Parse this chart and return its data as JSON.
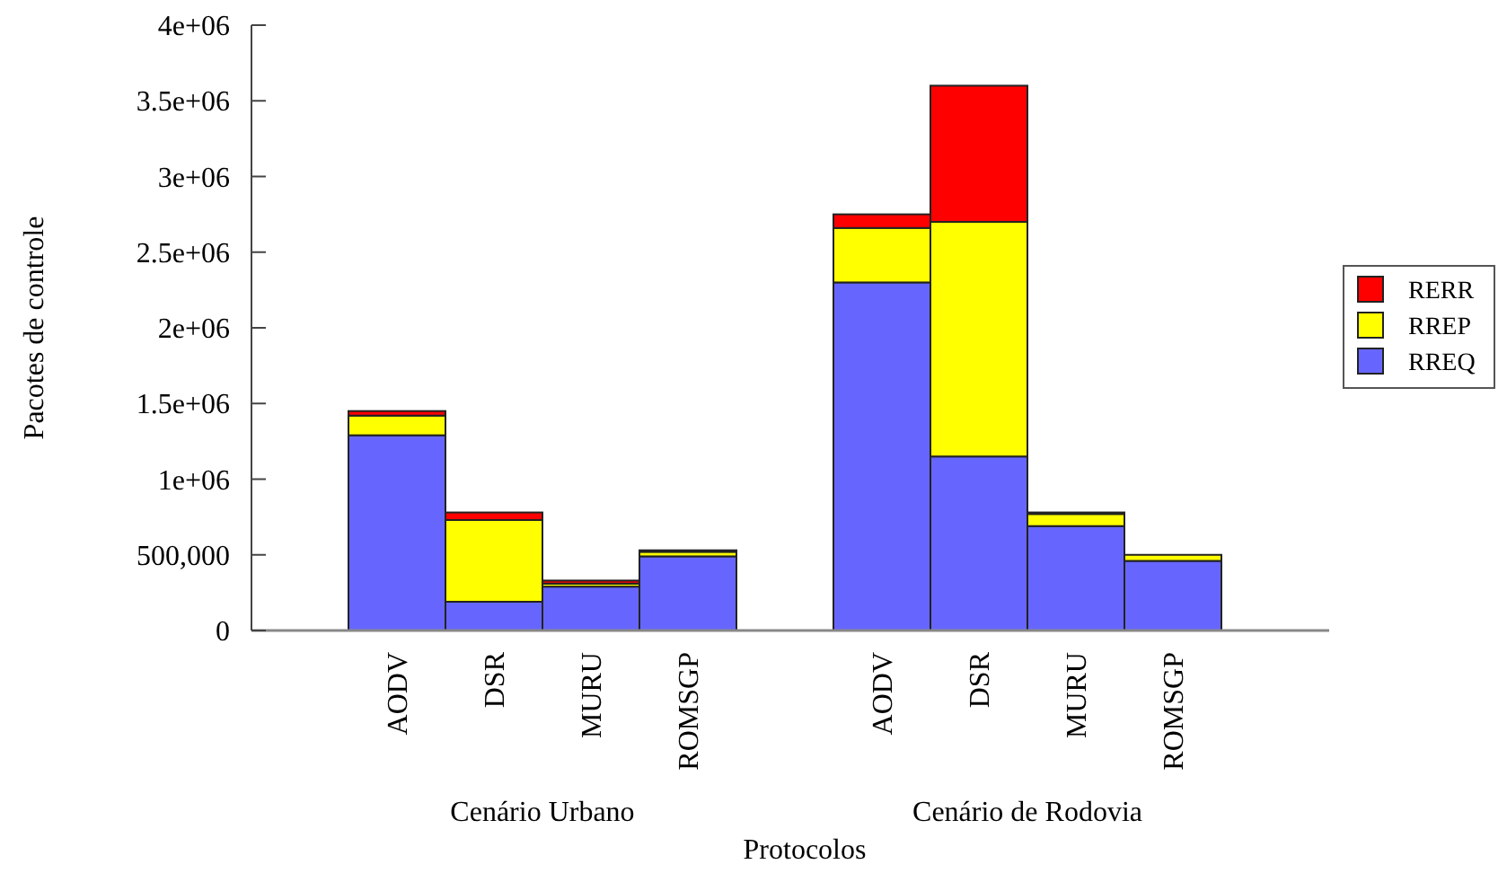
{
  "chart_data": {
    "type": "bar",
    "stacked": true,
    "xlabel": "Protocolos",
    "ylabel": "Pacotes de controle",
    "categories": [
      "AODV",
      "DSR",
      "MURU",
      "ROMSGP",
      null,
      "AODV",
      "DSR",
      "MURU",
      "ROMSGP"
    ],
    "series": [
      {
        "name": "RREQ",
        "color": "#6666ff",
        "values": [
          1290000,
          190000,
          290000,
          490000,
          null,
          2300000,
          1150000,
          690000,
          460000
        ]
      },
      {
        "name": "RREP",
        "color": "#ffff00",
        "values": [
          130000,
          540000,
          20000,
          30000,
          null,
          360000,
          1550000,
          80000,
          40000
        ]
      },
      {
        "name": "RERR",
        "color": "#ff0000",
        "values": [
          30000,
          50000,
          20000,
          10000,
          null,
          90000,
          900000,
          10000,
          null
        ]
      }
    ],
    "ylim": [
      0,
      4000000
    ],
    "yticks": [
      0,
      {
        "value": 500000,
        "label": "500,000"
      },
      {
        "value": 1000000,
        "label": "1e+06"
      },
      {
        "value": 1500000,
        "label": "1.5e+06"
      },
      {
        "value": 2000000,
        "label": "2e+06"
      },
      {
        "value": 2500000,
        "label": "2.5e+06"
      },
      {
        "value": 3000000,
        "label": "3e+06"
      },
      {
        "value": 3500000,
        "label": "3.5e+06"
      },
      {
        "value": 4000000,
        "label": "4e+06"
      }
    ],
    "legend": "right",
    "grid": false,
    "annotations": [
      "Cenário Urbano",
      "Cenário de Rodovia"
    ]
  }
}
